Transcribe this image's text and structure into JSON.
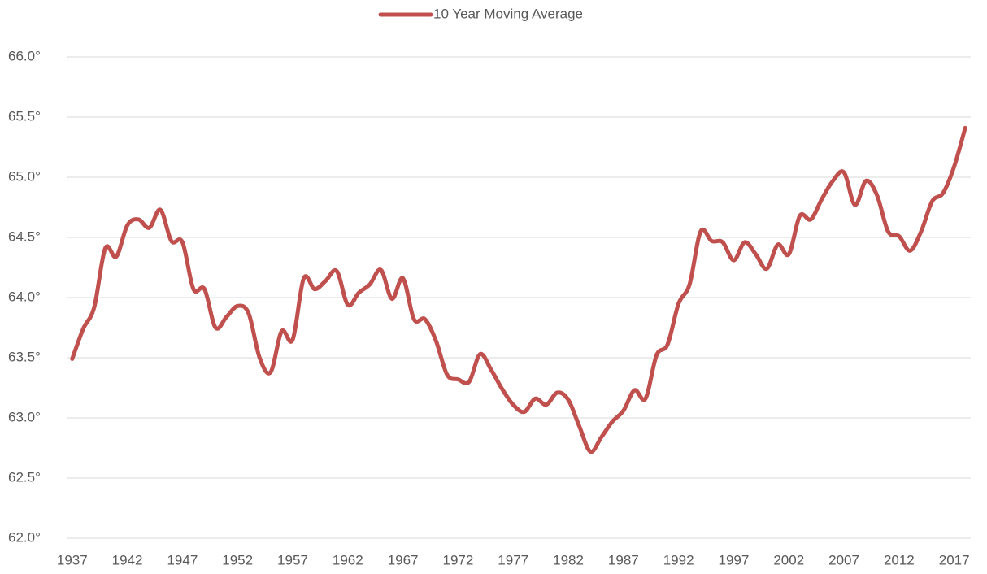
{
  "chart_data": {
    "type": "line",
    "series": [
      {
        "name": "10 Year Moving Average",
        "color": "#c0504d",
        "values": [
          63.49,
          63.74,
          63.92,
          64.41,
          64.34,
          64.6,
          64.65,
          64.58,
          64.73,
          64.47,
          64.46,
          64.07,
          64.07,
          63.75,
          63.84,
          63.93,
          63.87,
          63.5,
          63.38,
          63.72,
          63.65,
          64.16,
          64.07,
          64.14,
          64.22,
          63.94,
          64.04,
          64.11,
          64.23,
          63.99,
          64.16,
          63.82,
          63.82,
          63.64,
          63.36,
          63.32,
          63.3,
          63.53,
          63.4,
          63.24,
          63.11,
          63.05,
          63.16,
          63.11,
          63.21,
          63.15,
          62.93,
          62.72,
          62.84,
          62.97,
          63.06,
          63.23,
          63.16,
          63.52,
          63.61,
          63.95,
          64.11,
          64.55,
          64.47,
          64.46,
          64.31,
          64.46,
          64.36,
          64.24,
          64.44,
          64.36,
          64.68,
          64.65,
          64.82,
          64.97,
          65.04,
          64.77,
          64.97,
          64.85,
          64.55,
          64.51,
          64.39,
          64.55,
          64.8,
          64.87,
          65.09,
          65.41
        ]
      }
    ],
    "x": [
      1937,
      1938,
      1939,
      1940,
      1941,
      1942,
      1943,
      1944,
      1945,
      1946,
      1947,
      1948,
      1949,
      1950,
      1951,
      1952,
      1953,
      1954,
      1955,
      1956,
      1957,
      1958,
      1959,
      1960,
      1961,
      1962,
      1963,
      1964,
      1965,
      1966,
      1967,
      1968,
      1969,
      1970,
      1971,
      1972,
      1973,
      1974,
      1975,
      1976,
      1977,
      1978,
      1979,
      1980,
      1981,
      1982,
      1983,
      1984,
      1985,
      1986,
      1987,
      1988,
      1989,
      1990,
      1991,
      1992,
      1993,
      1994,
      1995,
      1996,
      1997,
      1998,
      1999,
      2000,
      2001,
      2002,
      2003,
      2004,
      2005,
      2006,
      2007,
      2008,
      2009,
      2010,
      2011,
      2012,
      2013,
      2014,
      2015,
      2016,
      2017,
      2018
    ],
    "xlim": [
      1936.5,
      2018.5
    ],
    "xticks": [
      1937,
      1942,
      1947,
      1952,
      1957,
      1962,
      1967,
      1972,
      1977,
      1982,
      1987,
      1992,
      1997,
      2002,
      2007,
      2012,
      2017
    ],
    "ylim": [
      62,
      66
    ],
    "yticks": [
      {
        "value": 62,
        "label": "62.0°"
      },
      {
        "value": 62.5,
        "label": "62.5°"
      },
      {
        "value": 63,
        "label": "63.0°"
      },
      {
        "value": 63.5,
        "label": "63.5°"
      },
      {
        "value": 64,
        "label": "64.0°"
      },
      {
        "value": 64.5,
        "label": "64.5°"
      },
      {
        "value": 65,
        "label": "65.0°"
      },
      {
        "value": 65.5,
        "label": "65.5°"
      },
      {
        "value": 66,
        "label": "66.0°"
      }
    ],
    "grid": true,
    "legend": "top"
  }
}
